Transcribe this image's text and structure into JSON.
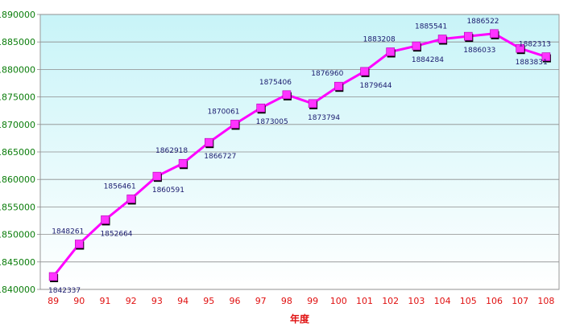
{
  "chart_data": {
    "type": "line",
    "title": "",
    "xlabel": "年度",
    "ylabel": "",
    "ylim": [
      1840000,
      1890000
    ],
    "yticks": [
      "1840000",
      "1845000",
      "1850000",
      "1855000",
      "1860000",
      "1865000",
      "1870000",
      "1875000",
      "1880000",
      "1885000",
      "1890000"
    ],
    "categories": [
      "89",
      "90",
      "91",
      "92",
      "93",
      "94",
      "95",
      "96",
      "97",
      "98",
      "99",
      "100",
      "101",
      "102",
      "103",
      "104",
      "105",
      "106",
      "107",
      "108"
    ],
    "values": [
      1842337,
      1848261,
      1852664,
      1856461,
      1860591,
      1862918,
      1866727,
      1870061,
      1873005,
      1875406,
      1873794,
      1876960,
      1879644,
      1883208,
      1884284,
      1885541,
      1886033,
      1886522,
      1883831,
      1882313
    ],
    "label_position": [
      "below",
      "above",
      "below",
      "above",
      "below",
      "above",
      "below",
      "above",
      "below",
      "above",
      "below",
      "above",
      "below",
      "above",
      "below",
      "above",
      "below",
      "above",
      "below",
      "above"
    ],
    "grid": true,
    "colors": {
      "line": "#ff00ff",
      "marker": "#ff33ff",
      "plot_top": "#c8f4f8",
      "plot_bottom": "#ffffff"
    }
  }
}
